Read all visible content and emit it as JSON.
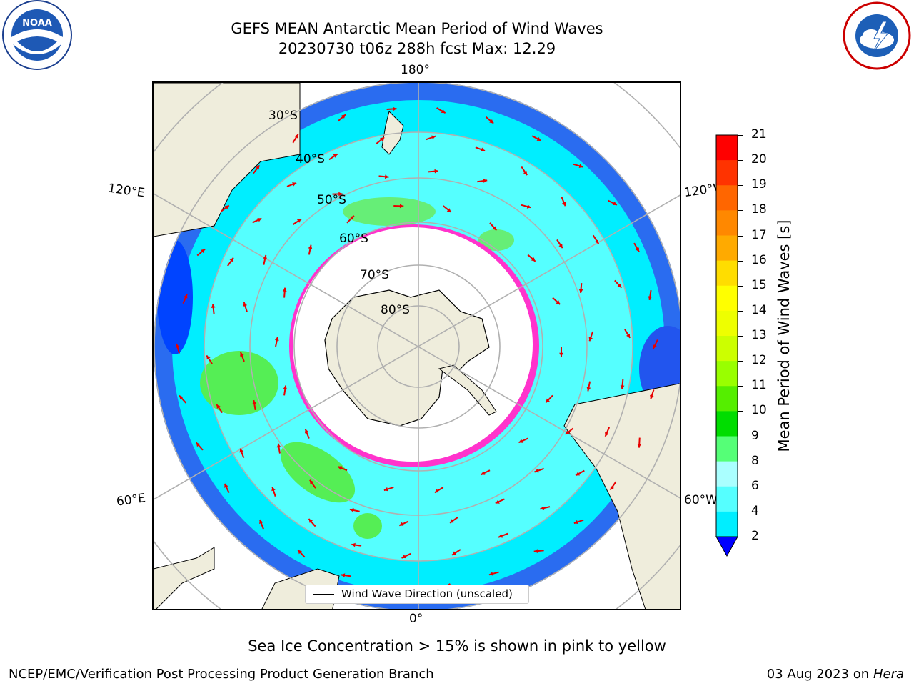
{
  "header": {
    "title_line1": "GEFS MEAN Antarctic Mean Period of Wind Waves",
    "title_line2": "20230730 t06z 288h fcst   Max: 12.29"
  },
  "logos": {
    "left": "noaa-logo",
    "right": "nws-logo"
  },
  "map": {
    "projection": "south-polar-stereographic",
    "longitude_labels": {
      "top": "180°",
      "bottom": "0°",
      "left_upper": "120°E",
      "left_lower": "60°E",
      "right_upper": "120°W",
      "right_lower": "60°W"
    },
    "latitude_labels": [
      "30°S",
      "40°S",
      "50°S",
      "60°S",
      "70°S",
      "80°S"
    ],
    "colors": {
      "land": "#efeddc",
      "ice": "#ffffff",
      "ice_edge": "#ff33cc",
      "arrows": "#e80000"
    }
  },
  "colorbar": {
    "label": "Mean Period of Wind Waves [s]",
    "ticks": [
      "21",
      "20",
      "19",
      "18",
      "17",
      "16",
      "15",
      "14",
      "13",
      "12",
      "11",
      "10",
      "9",
      "8",
      "6",
      "4",
      "2"
    ],
    "colors": [
      "#ff0000",
      "#ff3300",
      "#ff6600",
      "#ff8800",
      "#ffaa00",
      "#ffdd00",
      "#ffff00",
      "#eeff00",
      "#ccff00",
      "#99ff00",
      "#55ee00",
      "#00dd00",
      "#55ff77",
      "#aaffff",
      "#55ffff",
      "#00eeff",
      "#0077ff"
    ],
    "extend_color": "#0000ff"
  },
  "legend": {
    "label": "Wind Wave Direction (unscaled)"
  },
  "note": "Sea Ice Concentration > 15% is shown in pink to yellow",
  "footer": {
    "left": "NCEP/EMC/Verification Post Processing Product Generation Branch",
    "date": "03 Aug 2023 on",
    "machine": "Hera"
  }
}
